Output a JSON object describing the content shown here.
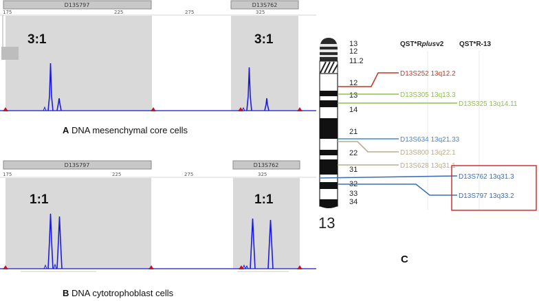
{
  "panel_a": {
    "marker_left": "D13S797",
    "marker_right": "D13S762",
    "ticks": [
      "175",
      "225",
      "275",
      "325"
    ],
    "ratio_left": "3:1",
    "ratio_right": "3:1",
    "caption_letter": "A",
    "caption_text": " DNA mesenchymal core cells"
  },
  "panel_b": {
    "marker_left": "D13S797",
    "marker_right": "D13S762",
    "ticks": [
      "175",
      "225",
      "275",
      "325"
    ],
    "ratio_left": "1:1",
    "ratio_right": "1:1",
    "caption_letter": "B",
    "caption_text": " DNA cytotrophoblast cells"
  },
  "panel_c": {
    "letter": "C",
    "chromosome_number": "13",
    "col_header_1_prefix": "QST*R",
    "col_header_1_italic": "plus",
    "col_header_1_suffix": "v2",
    "col_header_2": "QST*R-13",
    "bands": [
      "13",
      "12",
      "11.2",
      "12",
      "13",
      "14",
      "21",
      "22",
      "31",
      "32",
      "33",
      "34"
    ],
    "markers": [
      {
        "label": "D13S252 13q12.2",
        "color": "#c0392b"
      },
      {
        "label": "D13S305 13q13.3",
        "color": "#8fbf4a"
      },
      {
        "label": "D13S325 13q14.11",
        "color": "#8fbf4a"
      },
      {
        "label": "D13S634 13q21.33",
        "color": "#4a86c8"
      },
      {
        "label": "D13S800 13q22.1",
        "color": "#b8ae8a"
      },
      {
        "label": "D13S628 13q31.1",
        "color": "#b8ae8a"
      },
      {
        "label": "D13S762 13q31.3",
        "color": "#3a6fb7"
      },
      {
        "label": "D13S797 13q33.2",
        "color": "#3a6fb7"
      }
    ]
  }
}
